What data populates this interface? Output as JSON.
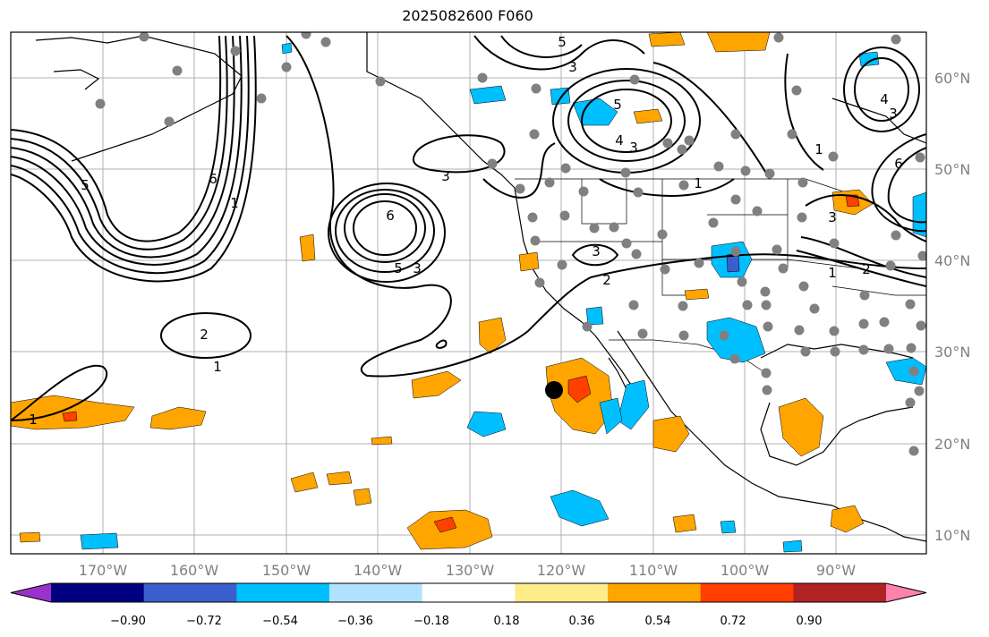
{
  "title": "2025082600 F060",
  "map": {
    "lat_labels": [
      "60°N",
      "50°N",
      "40°N",
      "30°N",
      "20°N",
      "10°N"
    ],
    "lon_labels": [
      "170°W",
      "160°W",
      "150°W",
      "140°W",
      "130°W",
      "120°W",
      "110°W",
      "100°W",
      "90°W"
    ],
    "contour_labels": [
      "1",
      "2",
      "3",
      "4",
      "5",
      "6"
    ],
    "colors": {
      "land_outline": "#000000",
      "gridline": "#b0b0b0",
      "station_dot": "#808080",
      "marker": "#000000"
    }
  },
  "colorbar": {
    "tick_labels": [
      "−0.90",
      "−0.72",
      "−0.54",
      "−0.36",
      "−0.18",
      "0.18",
      "0.36",
      "0.54",
      "0.72",
      "0.90"
    ],
    "colors": [
      "#9932cc",
      "#000080",
      "#3a5fcd",
      "#00bfff",
      "#b0e2ff",
      "#ffffff",
      "#ffec8b",
      "#ffa500",
      "#ff4000",
      "#b22222",
      "#ff82ab"
    ]
  }
}
